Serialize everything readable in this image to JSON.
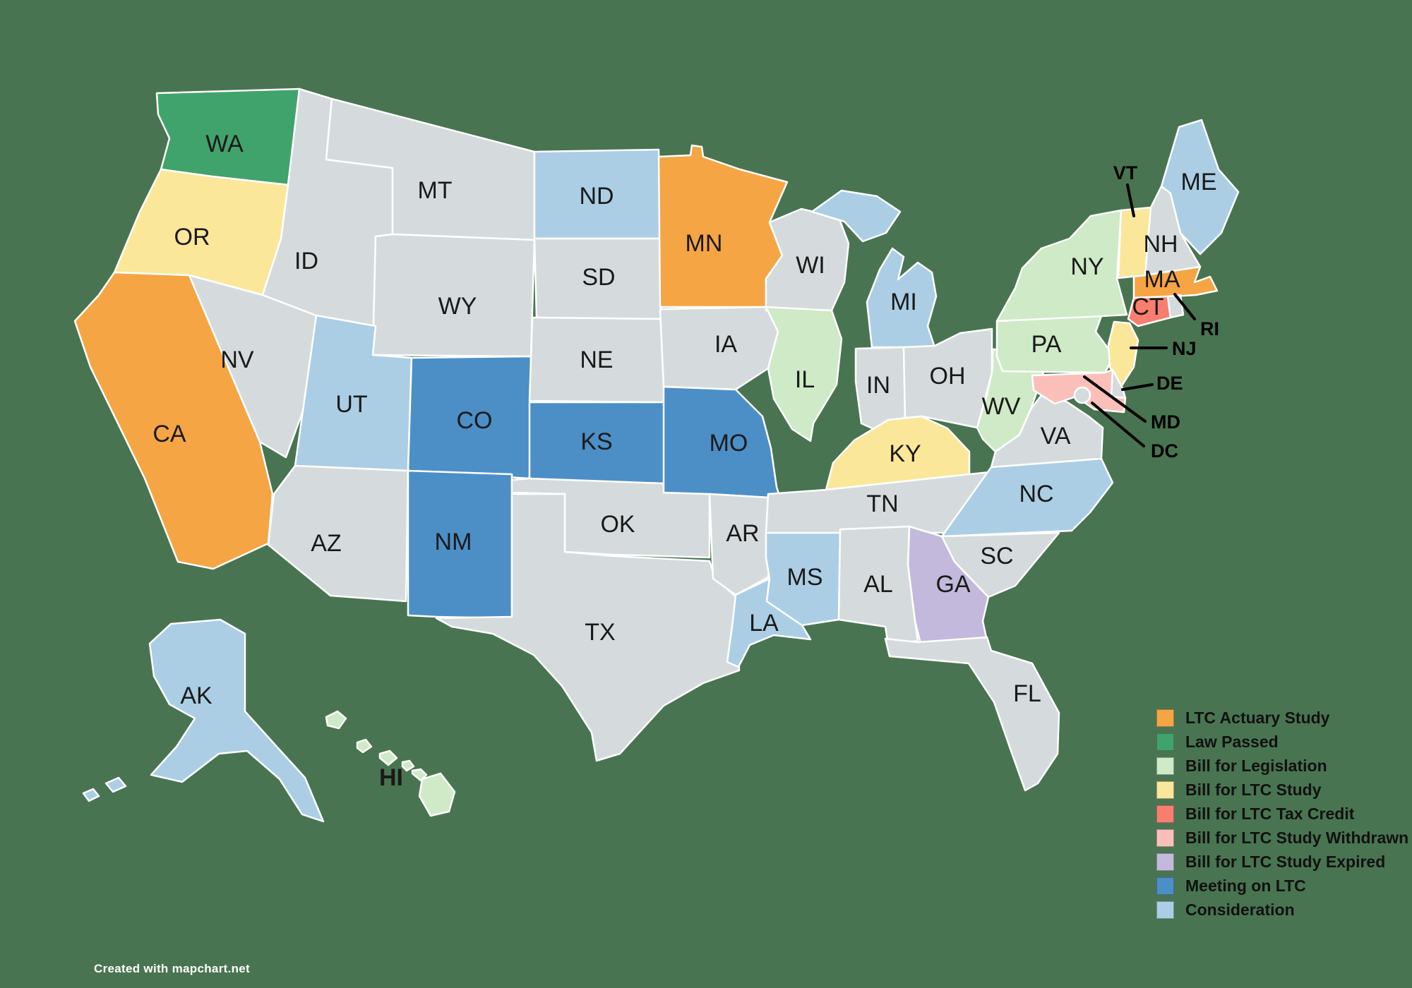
{
  "background_color": "#497451",
  "map": {
    "border_color": "#FFFFFF",
    "no_status_color": "#D5DBDD",
    "label_color": "#1A1A1A"
  },
  "legend": {
    "items": [
      {
        "key": "ltc_actuary_study",
        "label": "LTC Actuary Study",
        "color": "#F6A545"
      },
      {
        "key": "law_passed",
        "label": "Law Passed",
        "color": "#41A36C"
      },
      {
        "key": "bill_for_legislation",
        "label": "Bill for Legislation",
        "color": "#CEEAC6"
      },
      {
        "key": "bill_for_ltc_study",
        "label": "Bill for LTC Study",
        "color": "#FAE79A"
      },
      {
        "key": "bill_for_ltc_tax_credit",
        "label": "Bill for LTC Tax Credit",
        "color": "#F87E6F"
      },
      {
        "key": "bill_for_ltc_study_withdrawn",
        "label": "Bill for LTC Study Withdrawn",
        "color": "#FBBFBA"
      },
      {
        "key": "bill_for_ltc_study_expired",
        "label": "Bill for LTC Study Expired",
        "color": "#C3B9DC"
      },
      {
        "key": "meeting_on_ltc",
        "label": "Meeting on LTC",
        "color": "#4C8FC6"
      },
      {
        "key": "consideration",
        "label": "Consideration",
        "color": "#ABCEE5"
      }
    ]
  },
  "states": [
    {
      "abbr": "WA",
      "status": "law_passed"
    },
    {
      "abbr": "OR",
      "status": "bill_for_ltc_study"
    },
    {
      "abbr": "CA",
      "status": "ltc_actuary_study"
    },
    {
      "abbr": "NV",
      "status": null
    },
    {
      "abbr": "ID",
      "status": null
    },
    {
      "abbr": "MT",
      "status": null
    },
    {
      "abbr": "WY",
      "status": null
    },
    {
      "abbr": "UT",
      "status": "consideration"
    },
    {
      "abbr": "CO",
      "status": "meeting_on_ltc"
    },
    {
      "abbr": "AZ",
      "status": null
    },
    {
      "abbr": "NM",
      "status": "meeting_on_ltc"
    },
    {
      "abbr": "ND",
      "status": "consideration"
    },
    {
      "abbr": "SD",
      "status": null
    },
    {
      "abbr": "NE",
      "status": null
    },
    {
      "abbr": "KS",
      "status": "meeting_on_ltc"
    },
    {
      "abbr": "OK",
      "status": null
    },
    {
      "abbr": "TX",
      "status": null
    },
    {
      "abbr": "MN",
      "status": "ltc_actuary_study"
    },
    {
      "abbr": "IA",
      "status": null
    },
    {
      "abbr": "MO",
      "status": "meeting_on_ltc"
    },
    {
      "abbr": "AR",
      "status": null
    },
    {
      "abbr": "LA",
      "status": "consideration"
    },
    {
      "abbr": "WI",
      "status": null
    },
    {
      "abbr": "IL",
      "status": "bill_for_legislation"
    },
    {
      "abbr": "MS",
      "status": "consideration"
    },
    {
      "abbr": "MI",
      "status": "consideration"
    },
    {
      "abbr": "IN",
      "status": null
    },
    {
      "abbr": "OH",
      "status": null
    },
    {
      "abbr": "KY",
      "status": "bill_for_ltc_study"
    },
    {
      "abbr": "TN",
      "status": null
    },
    {
      "abbr": "WV",
      "status": "bill_for_legislation"
    },
    {
      "abbr": "VA",
      "status": null
    },
    {
      "abbr": "NC",
      "status": "consideration"
    },
    {
      "abbr": "SC",
      "status": null
    },
    {
      "abbr": "GA",
      "status": "bill_for_ltc_study_expired"
    },
    {
      "abbr": "AL",
      "status": null
    },
    {
      "abbr": "FL",
      "status": null
    },
    {
      "abbr": "PA",
      "status": "bill_for_legislation"
    },
    {
      "abbr": "NY",
      "status": "bill_for_legislation"
    },
    {
      "abbr": "NJ",
      "status": "bill_for_ltc_study"
    },
    {
      "abbr": "DE",
      "status": null
    },
    {
      "abbr": "MD",
      "status": "bill_for_ltc_study_withdrawn"
    },
    {
      "abbr": "DC",
      "status": null
    },
    {
      "abbr": "VT",
      "status": "bill_for_ltc_study"
    },
    {
      "abbr": "NH",
      "status": null
    },
    {
      "abbr": "ME",
      "status": "consideration"
    },
    {
      "abbr": "MA",
      "status": "ltc_actuary_study"
    },
    {
      "abbr": "CT",
      "status": "bill_for_ltc_tax_credit"
    },
    {
      "abbr": "RI",
      "status": null
    },
    {
      "abbr": "AK",
      "status": "consideration"
    },
    {
      "abbr": "HI",
      "status": "bill_for_legislation"
    }
  ],
  "callouts": [
    "VT",
    "RI",
    "NJ",
    "DE",
    "MD",
    "DC"
  ],
  "footer": {
    "credit": "Created with mapchart.net"
  }
}
